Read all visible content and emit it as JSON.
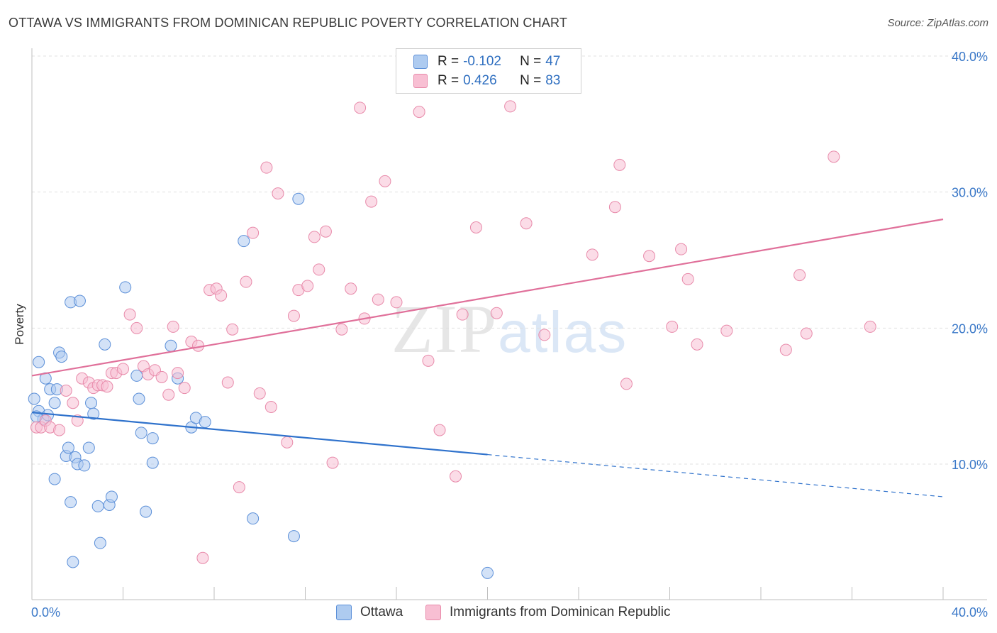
{
  "title": "OTTAWA VS IMMIGRANTS FROM DOMINICAN REPUBLIC POVERTY CORRELATION CHART",
  "source": "Source: ZipAtlas.com",
  "watermark": {
    "a": "ZIP",
    "b": "atlas"
  },
  "legend": {
    "rows": [
      {
        "r_label": "R =",
        "r_value": "-0.102",
        "n_label": "N =",
        "n_value": "47",
        "color": "#aecbf0"
      },
      {
        "r_label": "R =",
        "r_value": "0.426",
        "n_label": "N =",
        "n_value": "83",
        "color": "#f8bfd3"
      }
    ]
  },
  "bottom_legend": [
    {
      "label": "Ottawa",
      "color": "#aecbf0"
    },
    {
      "label": "Immigrants from Dominican Republic",
      "color": "#f8bfd3"
    }
  ],
  "chart_data": {
    "type": "scatter",
    "title": "OTTAWA VS IMMIGRANTS FROM DOMINICAN REPUBLIC POVERTY CORRELATION CHART",
    "xlabel": "",
    "ylabel": "Poverty",
    "xlim": [
      0,
      40
    ],
    "ylim": [
      0,
      40
    ],
    "x_tick_labels": [
      "0.0%",
      "40.0%"
    ],
    "y_ticks": [
      10,
      20,
      30,
      40
    ],
    "y_tick_labels": [
      "10.0%",
      "20.0%",
      "30.0%",
      "40.0%"
    ],
    "grid": true,
    "series": [
      {
        "name": "Ottawa",
        "color": "#5b8fd8",
        "fill": "#aecbf0",
        "trend": {
          "x0": 0,
          "y0": 13.8,
          "x1": 20,
          "y1": 10.7,
          "dashed_to_x": 40,
          "dashed_to_y": 7.6,
          "color": "#2f72cc"
        },
        "points": [
          [
            0.1,
            14.8
          ],
          [
            0.3,
            17.5
          ],
          [
            0.3,
            13.9
          ],
          [
            0.5,
            13.3
          ],
          [
            0.6,
            16.3
          ],
          [
            0.7,
            13.6
          ],
          [
            0.8,
            15.5
          ],
          [
            1.0,
            8.9
          ],
          [
            1.0,
            14.5
          ],
          [
            1.1,
            15.5
          ],
          [
            1.2,
            18.2
          ],
          [
            1.3,
            17.9
          ],
          [
            1.5,
            10.6
          ],
          [
            1.6,
            11.2
          ],
          [
            1.7,
            7.2
          ],
          [
            1.7,
            21.9
          ],
          [
            1.8,
            2.8
          ],
          [
            1.9,
            10.5
          ],
          [
            2.0,
            10.0
          ],
          [
            2.1,
            22.0
          ],
          [
            2.3,
            9.9
          ],
          [
            2.5,
            11.2
          ],
          [
            2.6,
            14.5
          ],
          [
            2.7,
            13.7
          ],
          [
            2.9,
            6.9
          ],
          [
            3.0,
            4.2
          ],
          [
            3.2,
            18.8
          ],
          [
            3.4,
            7.0
          ],
          [
            3.5,
            7.6
          ],
          [
            4.1,
            23.0
          ],
          [
            4.6,
            16.5
          ],
          [
            4.7,
            14.8
          ],
          [
            4.8,
            12.3
          ],
          [
            5.0,
            6.5
          ],
          [
            5.3,
            10.1
          ],
          [
            5.3,
            11.9
          ],
          [
            6.1,
            18.7
          ],
          [
            6.4,
            16.3
          ],
          [
            7.0,
            12.7
          ],
          [
            7.2,
            13.4
          ],
          [
            7.6,
            13.1
          ],
          [
            9.3,
            26.4
          ],
          [
            9.7,
            6.0
          ],
          [
            11.5,
            4.7
          ],
          [
            11.7,
            29.5
          ],
          [
            20.0,
            2.0
          ],
          [
            0.2,
            13.5
          ]
        ]
      },
      {
        "name": "Immigrants from Dominican Republic",
        "color": "#e88aaa",
        "fill": "#f8bfd3",
        "trend": {
          "x0": 0,
          "y0": 16.5,
          "x1": 40,
          "y1": 28.0,
          "color": "#e0709a"
        },
        "points": [
          [
            0.2,
            12.7
          ],
          [
            0.4,
            12.7
          ],
          [
            0.6,
            13.2
          ],
          [
            0.8,
            12.7
          ],
          [
            1.2,
            12.5
          ],
          [
            1.5,
            15.4
          ],
          [
            1.8,
            14.5
          ],
          [
            2.0,
            13.2
          ],
          [
            2.2,
            16.3
          ],
          [
            2.5,
            16.0
          ],
          [
            2.7,
            15.6
          ],
          [
            2.9,
            15.8
          ],
          [
            3.1,
            15.8
          ],
          [
            3.3,
            15.7
          ],
          [
            3.5,
            16.7
          ],
          [
            3.7,
            16.7
          ],
          [
            4.0,
            17.0
          ],
          [
            4.3,
            21.0
          ],
          [
            4.6,
            20.0
          ],
          [
            4.9,
            17.2
          ],
          [
            5.1,
            16.6
          ],
          [
            5.4,
            16.9
          ],
          [
            5.7,
            16.4
          ],
          [
            6.0,
            15.1
          ],
          [
            6.2,
            20.1
          ],
          [
            6.4,
            16.7
          ],
          [
            6.7,
            15.6
          ],
          [
            7.0,
            19.0
          ],
          [
            7.3,
            18.7
          ],
          [
            7.5,
            3.1
          ],
          [
            7.8,
            22.8
          ],
          [
            8.1,
            22.9
          ],
          [
            8.3,
            22.4
          ],
          [
            8.6,
            16.0
          ],
          [
            8.8,
            19.9
          ],
          [
            9.1,
            8.3
          ],
          [
            9.4,
            23.4
          ],
          [
            9.7,
            27.0
          ],
          [
            10.0,
            15.2
          ],
          [
            10.3,
            31.8
          ],
          [
            10.5,
            14.2
          ],
          [
            10.8,
            29.9
          ],
          [
            11.2,
            11.6
          ],
          [
            11.5,
            20.9
          ],
          [
            11.7,
            22.8
          ],
          [
            12.1,
            23.1
          ],
          [
            12.4,
            26.7
          ],
          [
            12.6,
            24.3
          ],
          [
            12.9,
            27.1
          ],
          [
            13.2,
            10.1
          ],
          [
            13.6,
            19.9
          ],
          [
            14.0,
            22.9
          ],
          [
            14.4,
            36.2
          ],
          [
            14.6,
            20.7
          ],
          [
            14.9,
            29.3
          ],
          [
            15.2,
            22.1
          ],
          [
            15.5,
            30.8
          ],
          [
            16.0,
            21.9
          ],
          [
            17.0,
            35.9
          ],
          [
            17.4,
            17.6
          ],
          [
            17.9,
            12.5
          ],
          [
            18.6,
            9.1
          ],
          [
            18.9,
            21.0
          ],
          [
            19.5,
            27.4
          ],
          [
            20.4,
            21.1
          ],
          [
            21.0,
            36.3
          ],
          [
            21.7,
            27.7
          ],
          [
            22.5,
            19.5
          ],
          [
            24.6,
            25.4
          ],
          [
            25.6,
            28.9
          ],
          [
            25.8,
            32.0
          ],
          [
            26.1,
            15.9
          ],
          [
            27.1,
            25.3
          ],
          [
            28.1,
            20.1
          ],
          [
            28.5,
            25.8
          ],
          [
            28.8,
            23.6
          ],
          [
            29.2,
            18.8
          ],
          [
            30.5,
            19.8
          ],
          [
            33.1,
            18.4
          ],
          [
            33.7,
            23.9
          ],
          [
            34.0,
            19.6
          ],
          [
            35.2,
            32.6
          ],
          [
            36.8,
            20.1
          ]
        ]
      }
    ]
  }
}
